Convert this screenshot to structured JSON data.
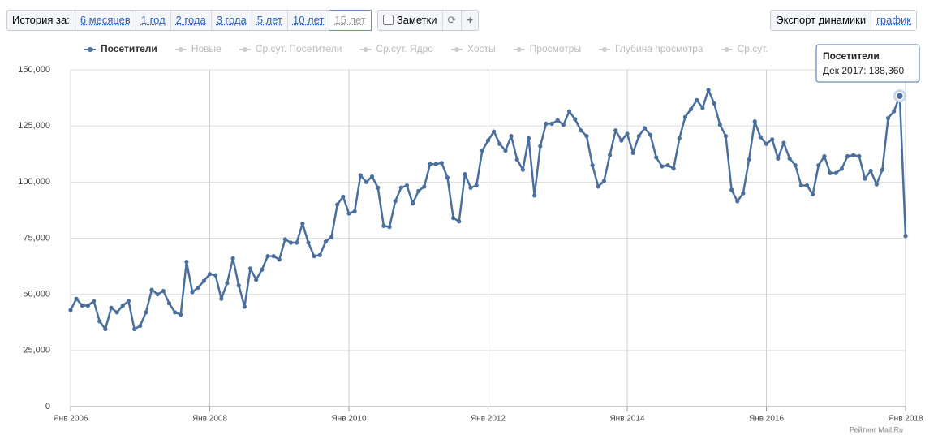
{
  "toolbar": {
    "history_label": "История за:",
    "periods": [
      "6 месяцев",
      "1 год",
      "2 года",
      "3 года",
      "5 лет",
      "10 лет",
      "15 лет"
    ],
    "active_period": 6,
    "notes_label": "Заметки",
    "export_label": "Экспорт динамики",
    "graph_label": "график"
  },
  "chart_data": {
    "type": "line",
    "grid": true,
    "legend_inactive": [
      "Новые",
      "Ср.сут. Посетители",
      "Ср.сут. Ядро",
      "Хосты",
      "Просмотры",
      "Глубина просмотра",
      "Ср.сут."
    ],
    "x": [
      "2006-01",
      "2006-02",
      "2006-03",
      "2006-04",
      "2006-05",
      "2006-06",
      "2006-07",
      "2006-08",
      "2006-09",
      "2006-10",
      "2006-11",
      "2006-12",
      "2007-01",
      "2007-02",
      "2007-03",
      "2007-04",
      "2007-05",
      "2007-06",
      "2007-07",
      "2007-08",
      "2007-09",
      "2007-10",
      "2007-11",
      "2007-12",
      "2008-01",
      "2008-02",
      "2008-03",
      "2008-04",
      "2008-05",
      "2008-06",
      "2008-07",
      "2008-08",
      "2008-09",
      "2008-10",
      "2008-11",
      "2008-12",
      "2009-01",
      "2009-02",
      "2009-03",
      "2009-04",
      "2009-05",
      "2009-06",
      "2009-07",
      "2009-08",
      "2009-09",
      "2009-10",
      "2009-11",
      "2009-12",
      "2010-01",
      "2010-02",
      "2010-03",
      "2010-04",
      "2010-05",
      "2010-06",
      "2010-07",
      "2010-08",
      "2010-09",
      "2010-10",
      "2010-11",
      "2010-12",
      "2011-01",
      "2011-02",
      "2011-03",
      "2011-04",
      "2011-05",
      "2011-06",
      "2011-07",
      "2011-08",
      "2011-09",
      "2011-10",
      "2011-11",
      "2011-12",
      "2012-01",
      "2012-02",
      "2012-03",
      "2012-04",
      "2012-05",
      "2012-06",
      "2012-07",
      "2012-08",
      "2012-09",
      "2012-10",
      "2012-11",
      "2012-12",
      "2013-01",
      "2013-02",
      "2013-03",
      "2013-04",
      "2013-05",
      "2013-06",
      "2013-07",
      "2013-08",
      "2013-09",
      "2013-10",
      "2013-11",
      "2013-12",
      "2014-01",
      "2014-02",
      "2014-03",
      "2014-04",
      "2014-05",
      "2014-06",
      "2014-07",
      "2014-08",
      "2014-09",
      "2014-10",
      "2014-11",
      "2014-12",
      "2015-01",
      "2015-02",
      "2015-03",
      "2015-04",
      "2015-05",
      "2015-06",
      "2015-07",
      "2015-08",
      "2015-09",
      "2015-10",
      "2015-11",
      "2015-12",
      "2016-01",
      "2016-02",
      "2016-03",
      "2016-04",
      "2016-05",
      "2016-06",
      "2016-07",
      "2016-08",
      "2016-09",
      "2016-10",
      "2016-11",
      "2016-12",
      "2017-01",
      "2017-02",
      "2017-03",
      "2017-04",
      "2017-05",
      "2017-06",
      "2017-07",
      "2017-08",
      "2017-09",
      "2017-10",
      "2017-11",
      "2017-12",
      "2018-01"
    ],
    "series": [
      {
        "name": "Посетители",
        "color": "#4a6f9c",
        "values": [
          43000,
          48000,
          45000,
          45000,
          47000,
          38000,
          34500,
          44000,
          42000,
          45000,
          47000,
          34500,
          36000,
          42000,
          52000,
          50000,
          51500,
          46000,
          42000,
          41000,
          64500,
          51000,
          53000,
          56000,
          59000,
          58500,
          48000,
          55000,
          66000,
          54000,
          44500,
          61500,
          56500,
          61000,
          67000,
          67000,
          65500,
          74500,
          73000,
          73000,
          81500,
          73000,
          67000,
          67500,
          73500,
          75500,
          90000,
          93500,
          86000,
          87000,
          103000,
          100000,
          102500,
          97500,
          80500,
          80000,
          91500,
          97500,
          98500,
          90500,
          96000,
          98000,
          108000,
          108000,
          108500,
          102000,
          84000,
          82500,
          103500,
          97500,
          98500,
          114000,
          118500,
          122500,
          117000,
          114000,
          120500,
          110000,
          105500,
          119500,
          94000,
          116000,
          126000,
          126000,
          127500,
          125500,
          131500,
          128000,
          123000,
          120500,
          107500,
          98000,
          100500,
          112000,
          123000,
          118500,
          121500,
          113000,
          120500,
          124000,
          121000,
          111000,
          107000,
          107500,
          106000,
          119500,
          129000,
          132500,
          136500,
          133000,
          141000,
          135000,
          125500,
          120500,
          96500,
          91500,
          95000,
          110000,
          127000,
          120000,
          117000,
          119000,
          110500,
          117500,
          110500,
          107500,
          98500,
          98500,
          94500,
          107500,
          111500,
          104000,
          104000,
          106000,
          111500,
          112000,
          111500,
          101500,
          105000,
          99000,
          105500,
          128500,
          131500,
          138360,
          76000
        ]
      }
    ],
    "xlim": [
      "2006-01",
      "2018-01"
    ],
    "xticks": [
      {
        "value": "2006-01",
        "label": "Янв 2006"
      },
      {
        "value": "2008-01",
        "label": "Янв 2008"
      },
      {
        "value": "2010-01",
        "label": "Янв 2010"
      },
      {
        "value": "2012-01",
        "label": "Янв 2012"
      },
      {
        "value": "2014-01",
        "label": "Янв 2014"
      },
      {
        "value": "2016-01",
        "label": "Янв 2016"
      },
      {
        "value": "2018-01",
        "label": "Янв 2018"
      }
    ],
    "ylim": [
      0,
      150000
    ],
    "yticks": [
      0,
      {
        "value": 25000,
        "label": "25,000"
      },
      {
        "value": 50000,
        "label": "50,000"
      },
      {
        "value": 75000,
        "label": "75,000"
      },
      {
        "value": 100000,
        "label": "100,000"
      },
      {
        "value": 125000,
        "label": "125,000"
      },
      {
        "value": 150000,
        "label": "150,000"
      }
    ],
    "tooltip": {
      "x": "2017-12",
      "title": "Посетители",
      "text": "Дек 2017: 138,360"
    },
    "credit": "Рейтинг Mail.Ru"
  }
}
